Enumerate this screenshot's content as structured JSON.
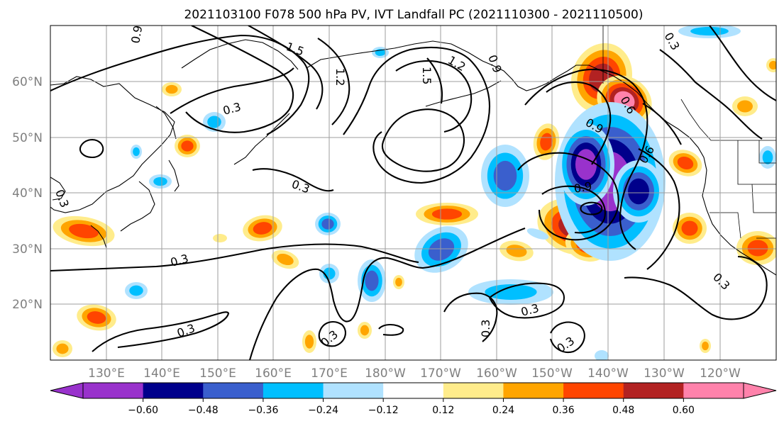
{
  "title": "2021103100 F078 500 hPa PV, IVT Landfall PC (2021110300 - 2021110500)",
  "map": {
    "lat_ticks": [
      "20°N",
      "30°N",
      "40°N",
      "50°N",
      "60°N"
    ],
    "lon_ticks": [
      "130°E",
      "140°E",
      "150°E",
      "160°E",
      "170°E",
      "180°W",
      "170°W",
      "160°W",
      "150°W",
      "140°W",
      "130°W",
      "120°W"
    ],
    "contour_labels": [
      "0.9",
      "1.5",
      "1.2",
      "1.5",
      "1.2",
      "0.9",
      "0.3",
      "0.9",
      "0.6",
      "0.9",
      "0.3",
      "0.3",
      "0.3",
      "0.3",
      "0.3",
      "0.3",
      "0.3",
      "0.3",
      "0.6",
      "0.3",
      "0.3"
    ]
  },
  "colorbar": {
    "colors": [
      "#9932cc",
      "#00008b",
      "#3a5fcd",
      "#00bfff",
      "#b0e2ff",
      "#ffffff",
      "#ffec8b",
      "#ffa500",
      "#ff4500",
      "#b22222",
      "#ff82ab"
    ],
    "under_color": "#9932cc",
    "over_color": "#ff82ab",
    "tick_labels": [
      "−0.60",
      "−0.48",
      "−0.36",
      "−0.24",
      "−0.12",
      "0.12",
      "0.24",
      "0.36",
      "0.48",
      "0.60"
    ]
  }
}
